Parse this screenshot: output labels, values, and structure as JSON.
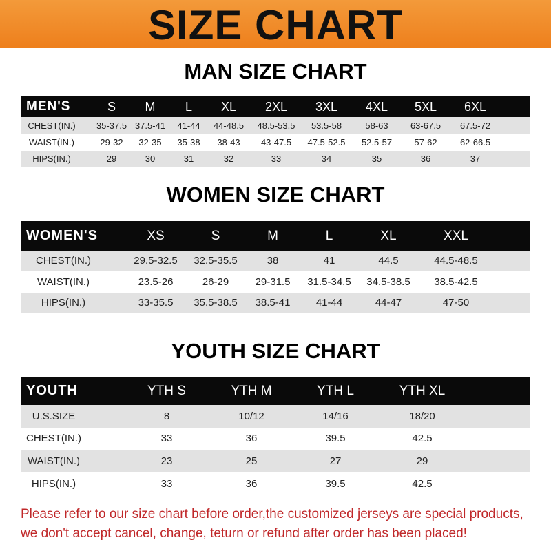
{
  "title": "SIZE CHART",
  "men": {
    "title": "MAN SIZE CHART",
    "header": [
      "MEN'S",
      "S",
      "M",
      "L",
      "XL",
      "2XL",
      "3XL",
      "4XL",
      "5XL",
      "6XL"
    ],
    "rows": [
      [
        "CHEST(IN.)",
        "35-37.5",
        "37.5-41",
        "41-44",
        "44-48.5",
        "48.5-53.5",
        "53.5-58",
        "58-63",
        "63-67.5",
        "67.5-72"
      ],
      [
        "WAIST(IN.)",
        "29-32",
        "32-35",
        "35-38",
        "38-43",
        "43-47.5",
        "47.5-52.5",
        "52.5-57",
        "57-62",
        "62-66.5"
      ],
      [
        "HIPS(IN.)",
        "29",
        "30",
        "31",
        "32",
        "33",
        "34",
        "35",
        "36",
        "37"
      ]
    ]
  },
  "women": {
    "title": "WOMEN SIZE CHART",
    "header": [
      "WOMEN'S",
      "XS",
      "S",
      "M",
      "L",
      "XL",
      "XXL"
    ],
    "rows": [
      [
        "CHEST(IN.)",
        "29.5-32.5",
        "32.5-35.5",
        "38",
        "41",
        "44.5",
        "44.5-48.5"
      ],
      [
        "WAIST(IN.)",
        "23.5-26",
        "26-29",
        "29-31.5",
        "31.5-34.5",
        "34.5-38.5",
        "38.5-42.5"
      ],
      [
        "HIPS(IN.)",
        "33-35.5",
        "35.5-38.5",
        "38.5-41",
        "41-44",
        "44-47",
        "47-50"
      ]
    ]
  },
  "youth": {
    "title": "YOUTH SIZE CHART",
    "header": [
      "YOUTH",
      "YTH S",
      "YTH M",
      "YTH L",
      "YTH XL"
    ],
    "rows": [
      [
        "U.S.SIZE",
        "8",
        "10/12",
        "14/16",
        "18/20"
      ],
      [
        "CHEST(IN.)",
        "33",
        "36",
        "39.5",
        "42.5"
      ],
      [
        "WAIST(IN.)",
        "23",
        "25",
        "27",
        "29"
      ],
      [
        "HIPS(IN.)",
        "33",
        "36",
        "39.5",
        "42.5"
      ]
    ]
  },
  "notice": [
    "Please refer to our size chart before order,the customized jerseys are special products,",
    "we don't accept cancel, change, teturn or refund after order has been placed!"
  ],
  "colors": {
    "banner": "#ee7f1c",
    "header_row": "#0a0a0a",
    "stripe": "#e2e2e2",
    "notice": "#c0282a"
  }
}
